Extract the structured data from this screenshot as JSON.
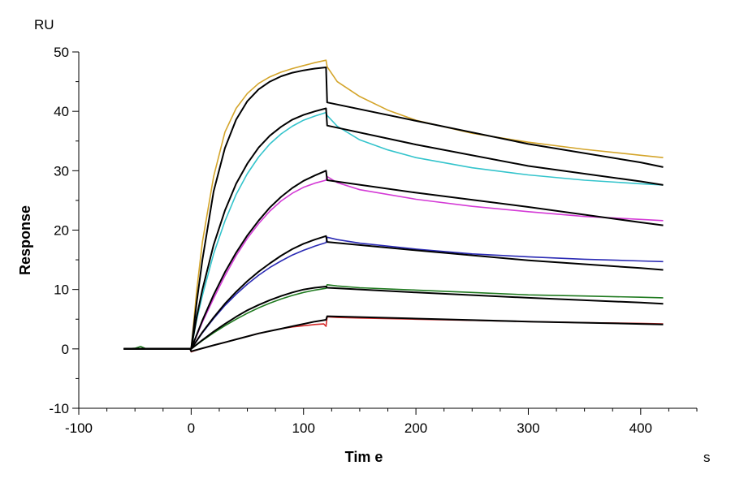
{
  "chart_data": {
    "type": "line",
    "title": "",
    "xlabel": "Tim e",
    "ylabel": "Response",
    "x_unit": "s",
    "y_unit": "RU",
    "xlim": [
      -100,
      450
    ],
    "ylim": [
      -10,
      50
    ],
    "x_ticks": [
      -100,
      0,
      100,
      200,
      300,
      400
    ],
    "y_ticks": [
      -10,
      0,
      10,
      20,
      30,
      40,
      50
    ],
    "grid": false,
    "legend": "none",
    "series": [
      {
        "color": "#d4a52b",
        "x": [
          -60,
          -40,
          -20,
          -1,
          0,
          5,
          10,
          20,
          30,
          40,
          50,
          60,
          70,
          80,
          90,
          100,
          110,
          120,
          121,
          130,
          150,
          175,
          200,
          250,
          300,
          350,
          400,
          420
        ],
        "y": [
          0,
          0,
          0,
          0,
          0,
          10,
          18,
          29,
          36.5,
          40.5,
          43,
          44.7,
          45.8,
          46.6,
          47.2,
          47.7,
          48.2,
          48.6,
          47.5,
          45,
          42.5,
          40.2,
          38.5,
          36.3,
          34.8,
          33.6,
          32.6,
          32.2
        ]
      },
      {
        "color": "#34c4cc",
        "x": [
          -60,
          -40,
          -20,
          -1,
          0,
          5,
          10,
          20,
          30,
          40,
          50,
          60,
          70,
          80,
          90,
          100,
          110,
          120,
          121,
          130,
          150,
          175,
          200,
          250,
          300,
          350,
          400,
          420
        ],
        "y": [
          0,
          0,
          0,
          0,
          0,
          5,
          9,
          16,
          21.5,
          26,
          29.5,
          32.3,
          34.5,
          36.2,
          37.5,
          38.5,
          39.2,
          39.8,
          39.3,
          37.5,
          35.2,
          33.5,
          32.2,
          30.5,
          29.3,
          28.4,
          27.8,
          27.6
        ]
      },
      {
        "color": "#d43ad6",
        "x": [
          -60,
          -40,
          -20,
          -1,
          0,
          10,
          20,
          30,
          40,
          50,
          60,
          70,
          80,
          90,
          100,
          110,
          120,
          121,
          130,
          150,
          200,
          250,
          300,
          350,
          400,
          420
        ],
        "y": [
          0,
          0,
          0,
          0,
          0,
          4.5,
          8.5,
          12.3,
          15.7,
          18.6,
          21.1,
          23.2,
          24.9,
          26.2,
          27.2,
          27.9,
          28.4,
          29,
          28,
          26.8,
          25.2,
          24,
          23.1,
          22.3,
          21.8,
          21.6
        ]
      },
      {
        "color": "#2a2ab4",
        "x": [
          -60,
          -40,
          -20,
          -1,
          0,
          10,
          20,
          30,
          40,
          50,
          60,
          70,
          80,
          90,
          100,
          110,
          120,
          121,
          130,
          150,
          200,
          250,
          300,
          350,
          400,
          420
        ],
        "y": [
          0,
          0,
          0,
          0,
          0,
          2.7,
          5.1,
          7.3,
          9.2,
          10.9,
          12.4,
          13.7,
          14.8,
          15.8,
          16.6,
          17.3,
          17.9,
          18.8,
          18.4,
          17.8,
          16.8,
          16,
          15.5,
          15.1,
          14.8,
          14.7
        ]
      },
      {
        "color": "#1f7a1f",
        "x": [
          -60,
          -50,
          -45,
          -40,
          -20,
          -1,
          0,
          10,
          20,
          30,
          40,
          50,
          60,
          70,
          80,
          90,
          100,
          110,
          120,
          121,
          130,
          150,
          200,
          250,
          300,
          350,
          400,
          420
        ],
        "y": [
          0,
          0.1,
          0.4,
          0,
          0,
          0,
          0,
          1.4,
          2.7,
          3.9,
          5,
          6,
          6.9,
          7.7,
          8.4,
          9,
          9.5,
          9.9,
          10.2,
          10.8,
          10.6,
          10.3,
          9.9,
          9.5,
          9.1,
          8.9,
          8.7,
          8.6
        ]
      },
      {
        "color": "#d42a2a",
        "x": [
          -60,
          -40,
          -20,
          -1,
          0,
          10,
          20,
          30,
          40,
          50,
          60,
          70,
          80,
          90,
          100,
          110,
          118,
          120,
          121,
          130,
          150,
          200,
          250,
          300,
          350,
          400,
          420
        ],
        "y": [
          0,
          0,
          0,
          0,
          -0.5,
          0.1,
          0.6,
          1.1,
          1.6,
          2.1,
          2.6,
          3,
          3.4,
          3.7,
          3.9,
          4.1,
          4.2,
          3.8,
          5.4,
          5.3,
          5.2,
          5,
          4.8,
          4.6,
          4.4,
          4.3,
          4.2
        ]
      },
      {
        "color": "#000000",
        "x": [
          -60,
          -40,
          -20,
          -1,
          0,
          5,
          10,
          20,
          30,
          40,
          50,
          60,
          70,
          80,
          90,
          100,
          110,
          120,
          121,
          200,
          300,
          400,
          420
        ],
        "y": [
          0,
          0,
          0,
          0,
          0,
          8,
          15,
          26.5,
          33.8,
          38.6,
          41.7,
          43.7,
          45,
          45.9,
          46.5,
          46.9,
          47.2,
          47.4,
          41.5,
          38.4,
          34.5,
          31.4,
          30.6
        ]
      },
      {
        "color": "#000000",
        "x": [
          -60,
          -40,
          -20,
          -1,
          0,
          5,
          10,
          20,
          30,
          40,
          50,
          60,
          70,
          80,
          90,
          100,
          110,
          120,
          121,
          200,
          300,
          400,
          420
        ],
        "y": [
          0,
          0,
          0,
          0,
          0,
          5.5,
          10,
          17.5,
          23.3,
          27.8,
          31.2,
          33.9,
          35.9,
          37.4,
          38.6,
          39.4,
          40,
          40.5,
          37.6,
          34.4,
          30.8,
          28.2,
          27.6
        ]
      },
      {
        "color": "#000000",
        "x": [
          -60,
          -40,
          -20,
          -1,
          0,
          10,
          20,
          30,
          40,
          50,
          60,
          70,
          80,
          90,
          100,
          110,
          120,
          121,
          200,
          300,
          400,
          420
        ],
        "y": [
          0,
          0,
          0,
          0,
          0,
          4.8,
          9.1,
          12.9,
          16.2,
          19.1,
          21.6,
          23.8,
          25.6,
          27.1,
          28.3,
          29.2,
          30,
          28.4,
          26.3,
          23.9,
          21.3,
          20.8
        ]
      },
      {
        "color": "#000000",
        "x": [
          -60,
          -40,
          -20,
          -1,
          0,
          10,
          20,
          30,
          40,
          50,
          60,
          70,
          80,
          90,
          100,
          110,
          120,
          121,
          200,
          300,
          400,
          420
        ],
        "y": [
          0,
          0,
          0,
          0,
          0,
          2.8,
          5.3,
          7.6,
          9.6,
          11.4,
          13,
          14.4,
          15.7,
          16.8,
          17.7,
          18.4,
          19,
          18,
          16.6,
          14.9,
          13.6,
          13.3
        ]
      },
      {
        "color": "#000000",
        "x": [
          -60,
          -40,
          -20,
          -1,
          0,
          10,
          20,
          30,
          40,
          50,
          60,
          70,
          80,
          90,
          100,
          110,
          120,
          121,
          200,
          300,
          400,
          420
        ],
        "y": [
          0,
          0,
          0,
          0,
          0,
          1.5,
          2.9,
          4.2,
          5.4,
          6.5,
          7.4,
          8.2,
          8.9,
          9.5,
          10,
          10.3,
          10.5,
          10.3,
          9.5,
          8.6,
          7.8,
          7.6
        ]
      },
      {
        "color": "#000000",
        "x": [
          -60,
          -40,
          -20,
          -1,
          0,
          10,
          20,
          30,
          40,
          50,
          60,
          70,
          80,
          90,
          100,
          110,
          120,
          121,
          200,
          300,
          400,
          420
        ],
        "y": [
          0,
          0,
          0,
          0,
          -0.4,
          0.1,
          0.6,
          1.1,
          1.6,
          2.1,
          2.6,
          3,
          3.4,
          3.8,
          4.2,
          4.6,
          4.9,
          5.5,
          5.1,
          4.6,
          4.2,
          4.1
        ]
      }
    ]
  }
}
